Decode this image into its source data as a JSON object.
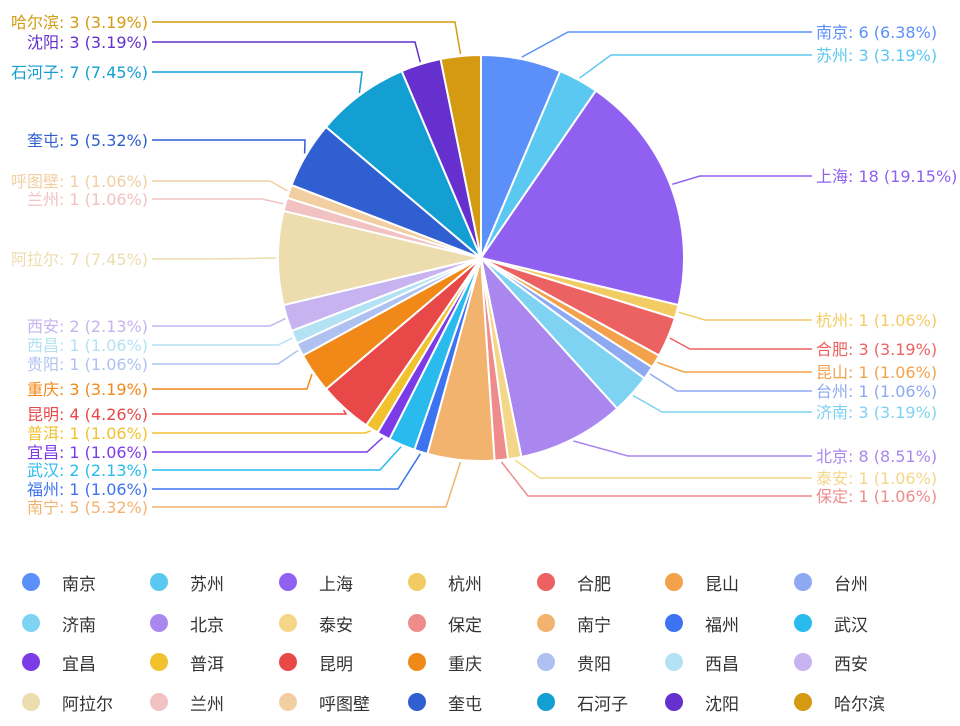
{
  "chart_data": {
    "type": "pie",
    "title": "",
    "total": 94,
    "slices": [
      {
        "label": "南京",
        "value": 6,
        "percent": "6.38%",
        "color": "#5b8ff9"
      },
      {
        "label": "苏州",
        "value": 3,
        "percent": "3.19%",
        "color": "#5ac8f0"
      },
      {
        "label": "上海",
        "value": 18,
        "percent": "19.15%",
        "color": "#9061f0"
      },
      {
        "label": "杭州",
        "value": 1,
        "percent": "1.06%",
        "color": "#f2cc63"
      },
      {
        "label": "合肥",
        "value": 3,
        "percent": "3.19%",
        "color": "#ec6262"
      },
      {
        "label": "昆山",
        "value": 1,
        "percent": "1.06%",
        "color": "#f3a24c"
      },
      {
        "label": "台州",
        "value": 1,
        "percent": "1.06%",
        "color": "#8ca9f2"
      },
      {
        "label": "济南",
        "value": 3,
        "percent": "3.19%",
        "color": "#7ed3f2"
      },
      {
        "label": "北京",
        "value": 8,
        "percent": "8.51%",
        "color": "#a987ee"
      },
      {
        "label": "泰安",
        "value": 1,
        "percent": "1.06%",
        "color": "#f3d688"
      },
      {
        "label": "保定",
        "value": 1,
        "percent": "1.06%",
        "color": "#ee8c8c"
      },
      {
        "label": "南宁",
        "value": 5,
        "percent": "5.32%",
        "color": "#f2b36e"
      },
      {
        "label": "福州",
        "value": 1,
        "percent": "1.06%",
        "color": "#3d73f0"
      },
      {
        "label": "武汉",
        "value": 2,
        "percent": "2.13%",
        "color": "#29bbee"
      },
      {
        "label": "宜昌",
        "value": 1,
        "percent": "1.06%",
        "color": "#7b3ce8"
      },
      {
        "label": "普洱",
        "value": 1,
        "percent": "1.06%",
        "color": "#f2c12e"
      },
      {
        "label": "昆明",
        "value": 4,
        "percent": "4.26%",
        "color": "#e84848"
      },
      {
        "label": "重庆",
        "value": 3,
        "percent": "3.19%",
        "color": "#f08918"
      },
      {
        "label": "贵阳",
        "value": 1,
        "percent": "1.06%",
        "color": "#aec1f1"
      },
      {
        "label": "西昌",
        "value": 1,
        "percent": "1.06%",
        "color": "#b3e2f4"
      },
      {
        "label": "西安",
        "value": 2,
        "percent": "2.13%",
        "color": "#c6b3f0"
      },
      {
        "label": "阿拉尔",
        "value": 7,
        "percent": "7.45%",
        "color": "#ecdcae"
      },
      {
        "label": "兰州",
        "value": 1,
        "percent": "1.06%",
        "color": "#f2c1c1"
      },
      {
        "label": "呼图壁",
        "value": 1,
        "percent": "1.06%",
        "color": "#f1cfa3"
      },
      {
        "label": "奎屯",
        "value": 5,
        "percent": "5.32%",
        "color": "#2f5fd0"
      },
      {
        "label": "石河子",
        "value": 7,
        "percent": "7.45%",
        "color": "#149fd3"
      },
      {
        "label": "沈阳",
        "value": 3,
        "percent": "3.19%",
        "color": "#6530cd"
      },
      {
        "label": "哈尔滨",
        "value": 3,
        "percent": "3.19%",
        "color": "#d39a12"
      }
    ],
    "legend_position": "bottom"
  }
}
